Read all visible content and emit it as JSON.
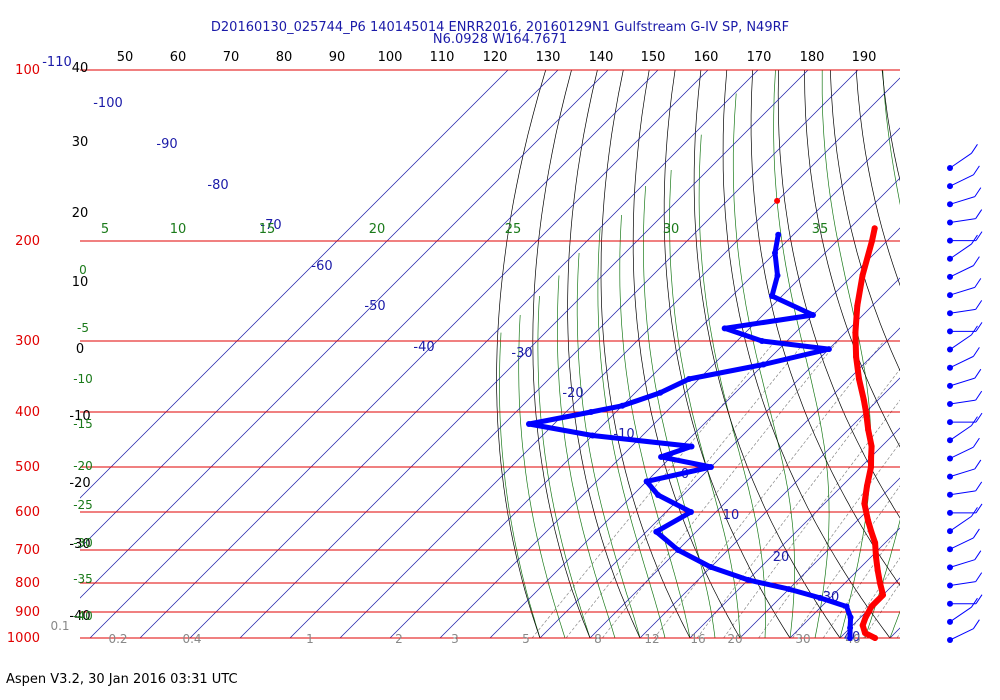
{
  "header": {
    "title_line1": "D20160130_025744_P6 140145014 ENRR2016, 20160129N1 Gulfstream G-IV SP, N49RF",
    "title_line2": "N6.0928 W164.7671"
  },
  "footer": {
    "text": "Aspen V3.2, 30 Jan 2016  03:31 UTC"
  },
  "colors": {
    "pressure_lines": "#e00000",
    "temperature": "#ff0000",
    "dewpoint": "#0000ff",
    "isotherms": "#1a1aa8",
    "dry_adiabats": "#000000",
    "moist_adiabats": "#1a7a1a",
    "mixing_ratio": "#888888",
    "wind_barbs": "#0000ff"
  },
  "chart_data": {
    "type": "scatter",
    "chart_kind": "skew-T log-P diagram",
    "pressure_ticks": [
      "100",
      "200",
      "300",
      "400",
      "500",
      "600",
      "700",
      "800",
      "900",
      "1000"
    ],
    "pressure_tick_values": [
      100,
      200,
      300,
      400,
      500,
      600,
      700,
      800,
      900,
      1000
    ],
    "top_axis_ticks": [
      "50",
      "60",
      "70",
      "80",
      "90",
      "100",
      "110",
      "120",
      "130",
      "140",
      "150",
      "160",
      "170",
      "180",
      "190"
    ],
    "isotherm_labels": [
      "-110",
      "-100",
      "-90",
      "-80",
      "-70",
      "-60",
      "-50",
      "-40",
      "-30",
      "-20",
      "-10",
      "0",
      "10",
      "20",
      "30",
      "40"
    ],
    "dry_adiabat_labels": [
      "40",
      "30",
      "20",
      "10",
      "0",
      "-10",
      "-20",
      "-30",
      "-40"
    ],
    "moist_adiabat_labels_top": [
      "5",
      "10",
      "15",
      "20",
      "25",
      "30",
      "35"
    ],
    "moist_adiabat_labels_left": [
      "0",
      "-5",
      "-10",
      "-15",
      "-20",
      "-25",
      "-30",
      "-35",
      "-40"
    ],
    "mixing_ratio_labels": [
      "0.1",
      "0.2",
      "0.4",
      "1",
      "2",
      "3",
      "5",
      "8",
      "12",
      "16",
      "20",
      "30",
      "40"
    ],
    "series": [
      {
        "name": "Temperature",
        "type": "line",
        "pressure": [
          190,
          200,
          230,
          260,
          290,
          320,
          350,
          380,
          400,
          430,
          460,
          480,
          500,
          540,
          580,
          620,
          650,
          680,
          720,
          760,
          800,
          840,
          880,
          920,
          950,
          980,
          1000
        ],
        "temperature": [
          -55,
          -53,
          -48,
          -43,
          -38,
          -33,
          -28,
          -23,
          -20,
          -16,
          -12,
          -10,
          -8,
          -5,
          -2,
          2,
          5,
          8,
          11,
          14,
          17,
          20,
          20,
          21,
          22,
          24,
          27
        ]
      },
      {
        "name": "Dewpoint",
        "type": "line",
        "pressure": [
          195,
          210,
          230,
          250,
          270,
          285,
          300,
          310,
          330,
          350,
          370,
          390,
          400,
          420,
          440,
          460,
          480,
          500,
          530,
          560,
          600,
          650,
          700,
          750,
          790,
          820,
          850,
          880,
          920,
          960,
          1000
        ],
        "temperature": [
          -73,
          -70,
          -65,
          -62,
          -50,
          -65,
          -55,
          -40,
          -50,
          -62,
          -65,
          -70,
          -75,
          -85,
          -70,
          -48,
          -52,
          -40,
          -50,
          -45,
          -35,
          -38,
          -30,
          -20,
          -10,
          0,
          8,
          15,
          18,
          20,
          22
        ]
      },
      {
        "name": "Isolated temperature point",
        "type": "scatter",
        "pressure": [
          170
        ],
        "temperature": [
          -80
        ]
      }
    ],
    "wind_barbs_count": 27,
    "xlabel": "",
    "ylabel": "",
    "grid": true
  }
}
